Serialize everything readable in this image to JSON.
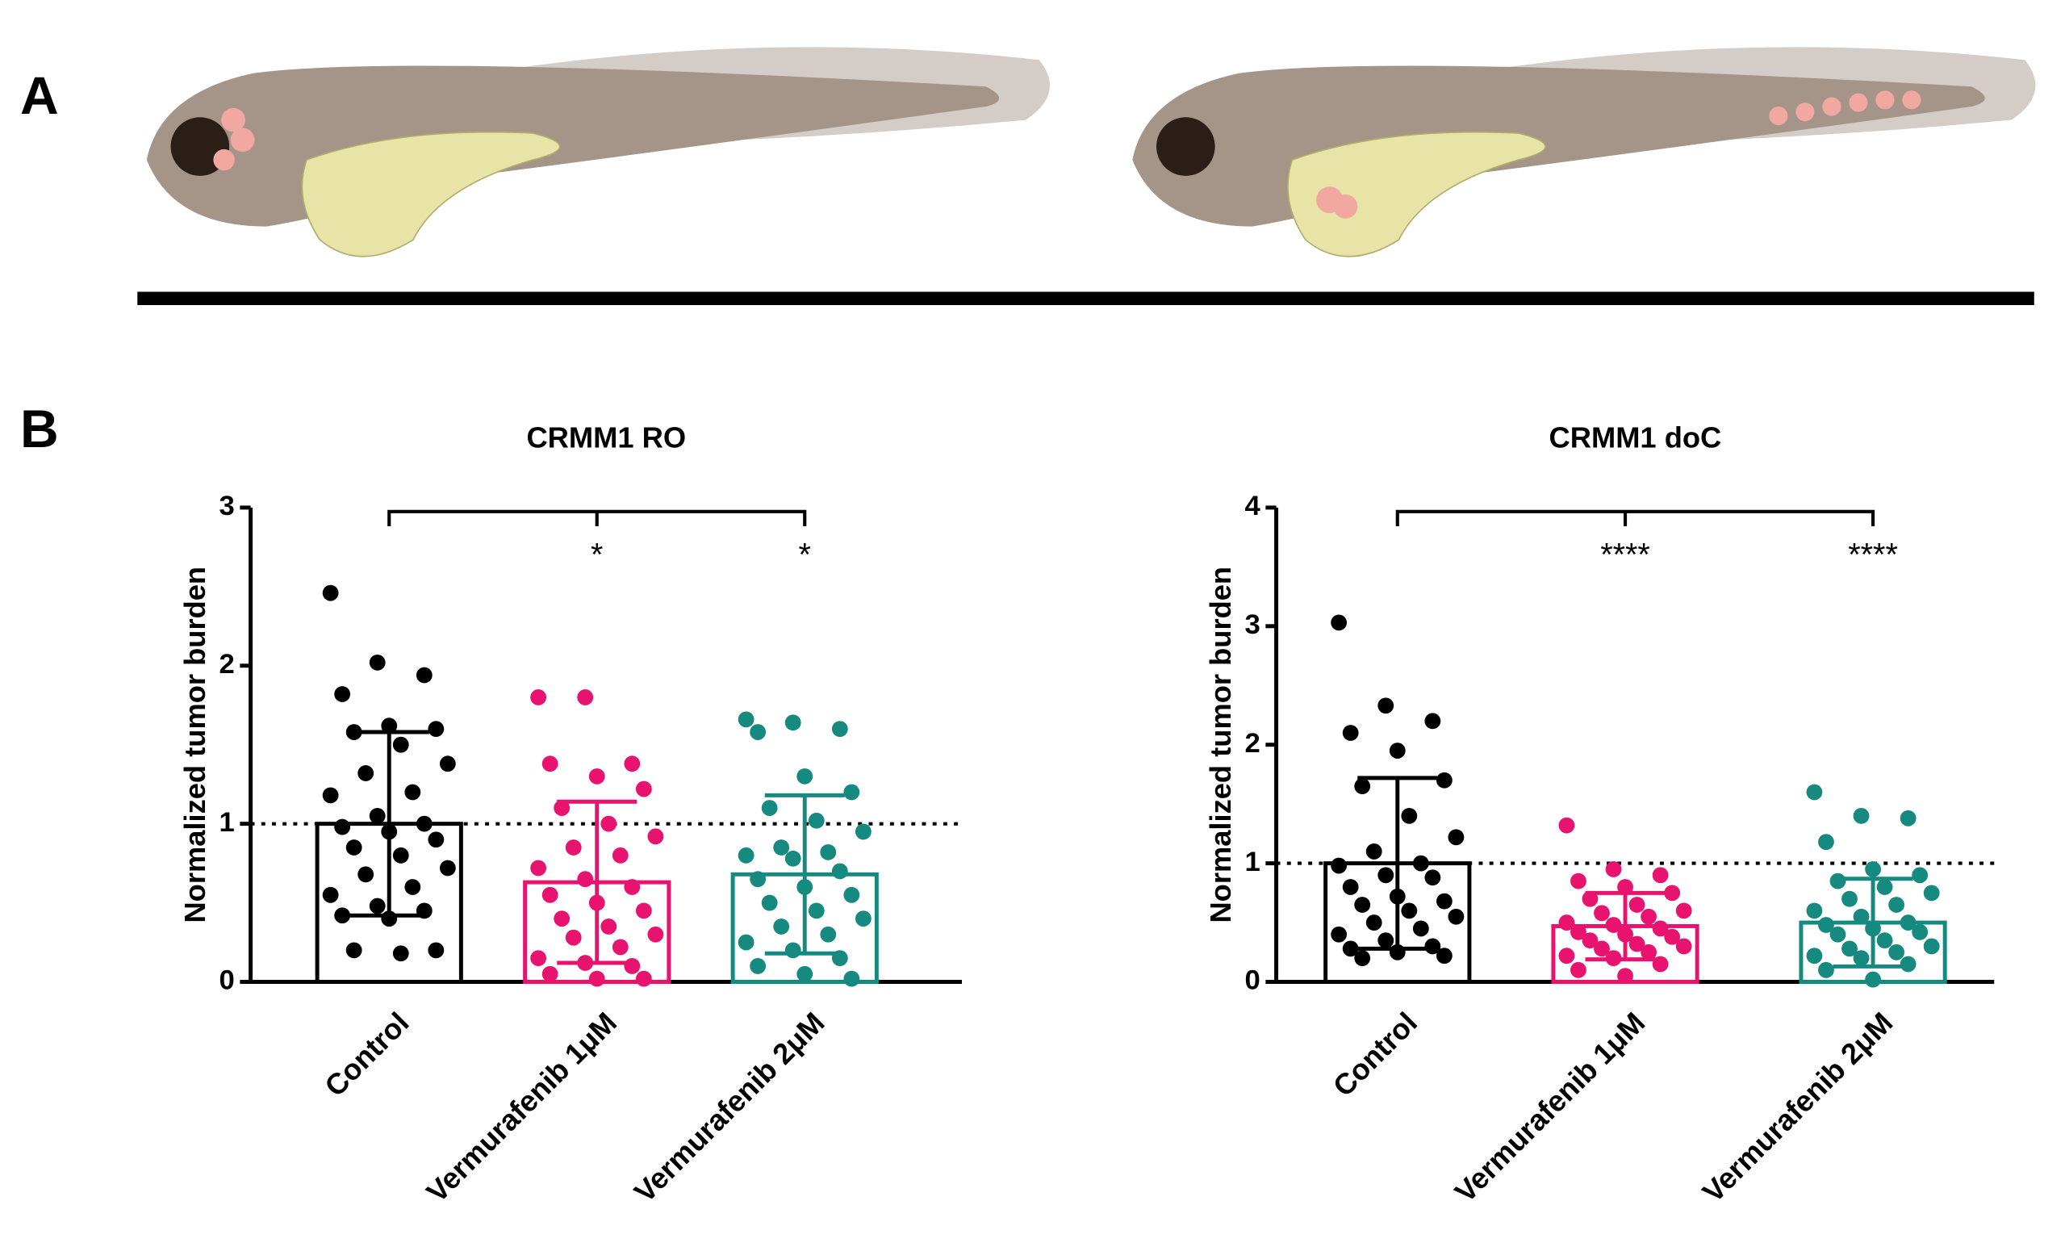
{
  "panel_labels": [
    "A",
    "B"
  ],
  "chart_data": [
    {
      "type": "bar",
      "title": "CRMM1 RO",
      "y_label": "Normalized tumor burden",
      "categories": [
        "Control",
        "Vermurafenib 1μM",
        "Vermurafenib 2μM"
      ],
      "colors": [
        "#000000",
        "#e8136f",
        "#178a80"
      ],
      "values": [
        1.0,
        0.63,
        0.68
      ],
      "errors": [
        0.58,
        0.51,
        0.5
      ],
      "points": [
        [
          2.46,
          2.02,
          1.94,
          1.82,
          1.62,
          1.6,
          1.58,
          1.5,
          1.38,
          1.32,
          1.2,
          1.18,
          1.05,
          1.0,
          0.98,
          0.95,
          0.9,
          0.85,
          0.8,
          0.72,
          0.68,
          0.6,
          0.55,
          0.48,
          0.45,
          0.42,
          0.4,
          0.2,
          0.2,
          0.18
        ],
        [
          1.8,
          1.8,
          1.38,
          1.38,
          1.3,
          1.22,
          1.1,
          1.0,
          0.92,
          0.85,
          0.8,
          0.72,
          0.65,
          0.6,
          0.55,
          0.5,
          0.45,
          0.4,
          0.35,
          0.3,
          0.28,
          0.22,
          0.15,
          0.12,
          0.1,
          0.05,
          0.02,
          0.02
        ],
        [
          1.66,
          1.64,
          1.6,
          1.58,
          1.3,
          1.2,
          1.1,
          1.02,
          0.95,
          0.85,
          0.82,
          0.8,
          0.78,
          0.7,
          0.65,
          0.6,
          0.55,
          0.5,
          0.45,
          0.4,
          0.35,
          0.3,
          0.25,
          0.2,
          0.15,
          0.1,
          0.05,
          0.02
        ]
      ],
      "significance": [
        null,
        "*",
        "*"
      ],
      "reference_line": 1,
      "ylim": [
        0,
        3
      ],
      "yticks": [
        0,
        1,
        2,
        3
      ]
    },
    {
      "type": "bar",
      "title": "CRMM1 doC",
      "y_label": "Normalized tumor burden",
      "categories": [
        "Control",
        "Vermurafenib 1μM",
        "Vermurafenib 2μM"
      ],
      "colors": [
        "#000000",
        "#e8136f",
        "#178a80"
      ],
      "values": [
        1.0,
        0.47,
        0.5
      ],
      "errors": [
        0.72,
        0.28,
        0.37
      ],
      "points": [
        [
          3.03,
          2.33,
          2.2,
          2.1,
          1.95,
          1.7,
          1.65,
          1.4,
          1.22,
          1.1,
          1.0,
          0.98,
          0.9,
          0.88,
          0.8,
          0.72,
          0.68,
          0.65,
          0.6,
          0.55,
          0.5,
          0.45,
          0.4,
          0.35,
          0.3,
          0.28,
          0.25,
          0.22,
          0.2
        ],
        [
          1.32,
          0.95,
          0.9,
          0.85,
          0.8,
          0.75,
          0.7,
          0.65,
          0.6,
          0.58,
          0.55,
          0.5,
          0.48,
          0.45,
          0.42,
          0.4,
          0.38,
          0.35,
          0.32,
          0.3,
          0.28,
          0.25,
          0.22,
          0.2,
          0.15,
          0.1,
          0.05
        ],
        [
          1.6,
          1.4,
          1.38,
          1.18,
          0.95,
          0.9,
          0.85,
          0.8,
          0.75,
          0.7,
          0.65,
          0.6,
          0.55,
          0.5,
          0.48,
          0.45,
          0.42,
          0.4,
          0.35,
          0.3,
          0.28,
          0.25,
          0.22,
          0.2,
          0.15,
          0.1,
          0.02
        ]
      ],
      "significance": [
        null,
        "****",
        "****"
      ],
      "reference_line": 1,
      "ylim": [
        0,
        4
      ],
      "yticks": [
        0,
        1,
        2,
        3,
        4
      ]
    }
  ]
}
